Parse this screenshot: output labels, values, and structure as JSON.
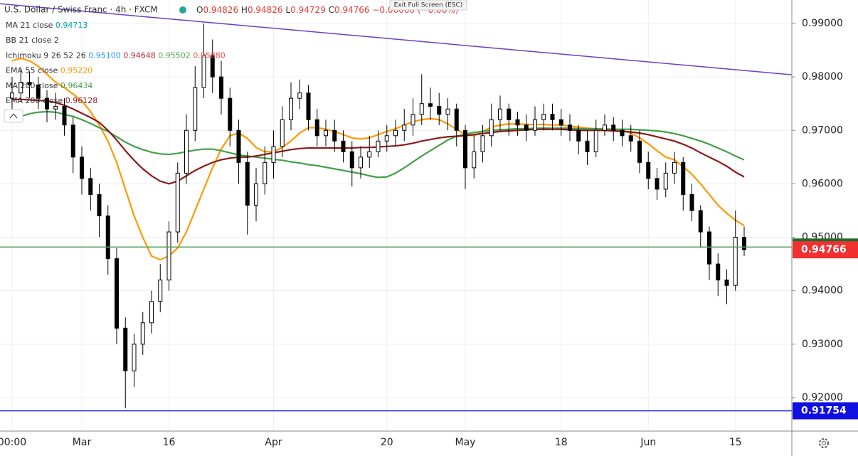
{
  "chart_data": {
    "type": "candlestick",
    "symbol": "U.S. Dollar / Swiss Franc · 4h · FXCM",
    "ohlc_header": [
      {
        "label": "O",
        "value": "0.94826"
      },
      {
        "label": "H",
        "value": "0.94826"
      },
      {
        "label": "L",
        "value": "0.94729"
      },
      {
        "label": "C",
        "value": "0.94766"
      }
    ],
    "change": "−0.00060 (−0.06%)",
    "exit_button": "Exit Full Screen (ESC)",
    "indicators": [
      {
        "name": "MA 21 close",
        "readings": [
          "0.94713"
        ],
        "colors": [
          "#00a3b4"
        ]
      },
      {
        "name": "BB 21 close 2",
        "readings": [],
        "colors": []
      },
      {
        "name": "Ichimoku 9 26 52 26",
        "readings": [
          "0.95100",
          "0.94648",
          "0.95502",
          "0.95880"
        ],
        "colors": [
          "#2196f3",
          "#b22833",
          "#4caf50",
          "#ef5350"
        ]
      }
    ],
    "categories": [
      "00:00",
      null,
      null,
      null,
      null,
      null,
      null,
      null,
      "Mar",
      null,
      null,
      null,
      null,
      null,
      null,
      null,
      null,
      null,
      "16",
      null,
      null,
      null,
      null,
      null,
      null,
      null,
      null,
      null,
      null,
      null,
      "Apr",
      null,
      null,
      null,
      null,
      null,
      null,
      null,
      null,
      null,
      null,
      null,
      null,
      "20",
      null,
      null,
      null,
      null,
      null,
      null,
      null,
      null,
      "May",
      null,
      null,
      null,
      null,
      null,
      null,
      null,
      null,
      null,
      null,
      "18",
      null,
      null,
      null,
      null,
      null,
      null,
      null,
      null,
      null,
      "Jun",
      null,
      null,
      null,
      null,
      null,
      null,
      null,
      null,
      null,
      "15",
      null
    ],
    "open": [
      0.976,
      0.977,
      0.979,
      0.9785,
      0.976,
      0.974,
      0.9745,
      0.971,
      0.965,
      0.961,
      0.958,
      0.954,
      0.946,
      0.933,
      0.925,
      0.93,
      0.934,
      0.938,
      0.942,
      0.951,
      0.962,
      0.97,
      0.978,
      0.984,
      0.98,
      0.976,
      0.97,
      0.964,
      0.956,
      0.96,
      0.964,
      0.967,
      0.972,
      0.976,
      0.977,
      0.972,
      0.969,
      0.97,
      0.968,
      0.966,
      0.963,
      0.965,
      0.966,
      0.968,
      0.969,
      0.97,
      0.971,
      0.973,
      0.975,
      0.9745,
      0.973,
      0.974,
      0.97,
      0.963,
      0.966,
      0.969,
      0.972,
      0.974,
      0.972,
      0.971,
      0.97,
      0.972,
      0.973,
      0.972,
      0.971,
      0.97,
      0.968,
      0.966,
      0.97,
      0.971,
      0.97,
      0.969,
      0.968,
      0.964,
      0.961,
      0.959,
      0.962,
      0.964,
      0.958,
      0.955,
      0.951,
      0.945,
      0.942,
      0.941,
      0.95
    ],
    "high": [
      0.98,
      0.9815,
      0.981,
      0.98,
      0.9775,
      0.977,
      0.976,
      0.9725,
      0.967,
      0.963,
      0.96,
      0.956,
      0.948,
      0.935,
      0.932,
      0.936,
      0.94,
      0.945,
      0.953,
      0.964,
      0.973,
      0.982,
      0.99,
      0.987,
      0.983,
      0.978,
      0.972,
      0.966,
      0.963,
      0.967,
      0.97,
      0.9745,
      0.979,
      0.9795,
      0.9785,
      0.974,
      0.972,
      0.972,
      0.97,
      0.968,
      0.967,
      0.969,
      0.97,
      0.971,
      0.972,
      0.974,
      0.976,
      0.9805,
      0.978,
      0.977,
      0.976,
      0.975,
      0.971,
      0.969,
      0.971,
      0.975,
      0.9765,
      0.975,
      0.9735,
      0.973,
      0.9745,
      0.975,
      0.975,
      0.974,
      0.973,
      0.971,
      0.97,
      0.972,
      0.973,
      0.9725,
      0.972,
      0.971,
      0.97,
      0.966,
      0.963,
      0.964,
      0.966,
      0.965,
      0.96,
      0.956,
      0.952,
      0.947,
      0.944,
      0.955,
      0.952
    ],
    "low": [
      0.974,
      0.9755,
      0.976,
      0.974,
      0.9715,
      0.972,
      0.969,
      0.962,
      0.958,
      0.955,
      0.95,
      0.943,
      0.93,
      0.918,
      0.922,
      0.928,
      0.932,
      0.936,
      0.94,
      0.949,
      0.96,
      0.968,
      0.976,
      0.977,
      0.973,
      0.967,
      0.96,
      0.9505,
      0.953,
      0.958,
      0.961,
      0.965,
      0.97,
      0.974,
      0.97,
      0.967,
      0.967,
      0.966,
      0.964,
      0.9595,
      0.961,
      0.963,
      0.965,
      0.966,
      0.967,
      0.968,
      0.969,
      0.971,
      0.972,
      0.971,
      0.97,
      0.967,
      0.959,
      0.961,
      0.964,
      0.967,
      0.97,
      0.969,
      0.969,
      0.968,
      0.969,
      0.97,
      0.97,
      0.969,
      0.968,
      0.9655,
      0.9635,
      0.965,
      0.969,
      0.968,
      0.967,
      0.966,
      0.962,
      0.959,
      0.957,
      0.9575,
      0.96,
      0.955,
      0.953,
      0.948,
      0.942,
      0.939,
      0.9375,
      0.94,
      0.9465
    ],
    "close": [
      0.977,
      0.979,
      0.9785,
      0.976,
      0.974,
      0.9745,
      0.971,
      0.965,
      0.961,
      0.958,
      0.954,
      0.946,
      0.933,
      0.925,
      0.93,
      0.934,
      0.938,
      0.942,
      0.951,
      0.962,
      0.97,
      0.978,
      0.984,
      0.98,
      0.976,
      0.97,
      0.964,
      0.956,
      0.96,
      0.964,
      0.967,
      0.972,
      0.976,
      0.977,
      0.972,
      0.969,
      0.97,
      0.968,
      0.966,
      0.963,
      0.965,
      0.966,
      0.968,
      0.969,
      0.97,
      0.971,
      0.973,
      0.975,
      0.9745,
      0.973,
      0.974,
      0.97,
      0.963,
      0.966,
      0.969,
      0.972,
      0.974,
      0.972,
      0.971,
      0.97,
      0.972,
      0.973,
      0.972,
      0.971,
      0.97,
      0.968,
      0.966,
      0.97,
      0.971,
      0.97,
      0.969,
      0.968,
      0.964,
      0.961,
      0.959,
      0.962,
      0.964,
      0.958,
      0.955,
      0.951,
      0.945,
      0.942,
      0.941,
      0.95,
      0.9477
    ],
    "up_color": "#ffffff",
    "down_color": "#000000",
    "wick_color": "#000000",
    "series": [
      {
        "name": "EMA 55 close",
        "reading": "0.95220",
        "color": "#ff9800",
        "values": [
          0.983,
          0.9835,
          0.983,
          0.982,
          0.9805,
          0.979,
          0.978,
          0.9768,
          0.9755,
          0.9735,
          0.971,
          0.968,
          0.964,
          0.959,
          0.954,
          0.95,
          0.9465,
          0.9458,
          0.9465,
          0.948,
          0.951,
          0.955,
          0.959,
          0.963,
          0.9665,
          0.969,
          0.9695,
          0.9685,
          0.9668,
          0.966,
          0.966,
          0.9668,
          0.968,
          0.9695,
          0.9705,
          0.9705,
          0.9702,
          0.9698,
          0.9692,
          0.9686,
          0.9684,
          0.9686,
          0.9692,
          0.9698,
          0.9703,
          0.971,
          0.9716,
          0.972,
          0.9722,
          0.972,
          0.9712,
          0.9702,
          0.9692,
          0.969,
          0.9698,
          0.9706,
          0.971,
          0.9712,
          0.9712,
          0.9711,
          0.9711,
          0.9711,
          0.971,
          0.971,
          0.9708,
          0.9706,
          0.9704,
          0.9703,
          0.9703,
          0.9702,
          0.97,
          0.9695,
          0.9686,
          0.9675,
          0.9662,
          0.965,
          0.9645,
          0.9632,
          0.9618,
          0.96,
          0.958,
          0.956,
          0.9545,
          0.9532,
          0.9522
        ]
      },
      {
        "name": "MA 200 close",
        "reading": "0.96434",
        "color": "#43a047",
        "values": [
          0.972,
          0.9726,
          0.9731,
          0.9734,
          0.9735,
          0.9734,
          0.973,
          0.9726,
          0.972,
          0.9713,
          0.9705,
          0.9698,
          0.9688,
          0.9678,
          0.967,
          0.9664,
          0.9659,
          0.9656,
          0.9655,
          0.9657,
          0.966,
          0.9663,
          0.9665,
          0.9665,
          0.9662,
          0.9658,
          0.9654,
          0.9652,
          0.965,
          0.9648,
          0.9646,
          0.9644,
          0.9641,
          0.9639,
          0.9636,
          0.9634,
          0.9631,
          0.9628,
          0.9625,
          0.9622,
          0.9619,
          0.9615,
          0.9612,
          0.9613,
          0.962,
          0.963,
          0.9641,
          0.9652,
          0.9662,
          0.9672,
          0.9682,
          0.9689,
          0.9693,
          0.9696,
          0.9698,
          0.97,
          0.9701,
          0.9702,
          0.9703,
          0.9703,
          0.9704,
          0.9704,
          0.9704,
          0.9704,
          0.9704,
          0.9703,
          0.9703,
          0.9703,
          0.9702,
          0.9702,
          0.9702,
          0.9702,
          0.9701,
          0.97,
          0.9699,
          0.9697,
          0.9694,
          0.969,
          0.9685,
          0.968,
          0.9674,
          0.9667,
          0.966,
          0.9652,
          0.9645
        ]
      },
      {
        "name": "EMA 200 close",
        "reading": "0.96128",
        "color": "#8b1a1a",
        "values": [
          0.9758,
          0.9758,
          0.9757,
          0.9756,
          0.9755,
          0.9752,
          0.9747,
          0.974,
          0.9732,
          0.9724,
          0.9715,
          0.97,
          0.9682,
          0.9662,
          0.9644,
          0.9628,
          0.9615,
          0.9605,
          0.96,
          0.9605,
          0.9615,
          0.9625,
          0.9633,
          0.964,
          0.9645,
          0.9648,
          0.965,
          0.965,
          0.9652,
          0.9655,
          0.9658,
          0.9661,
          0.9664,
          0.9666,
          0.9667,
          0.9667,
          0.9667,
          0.9667,
          0.9667,
          0.9667,
          0.9668,
          0.9668,
          0.9669,
          0.967,
          0.9671,
          0.9673,
          0.9676,
          0.968,
          0.9683,
          0.9686,
          0.9688,
          0.9689,
          0.969,
          0.9692,
          0.9694,
          0.9696,
          0.9698,
          0.9699,
          0.97,
          0.9701,
          0.9702,
          0.9702,
          0.9702,
          0.9702,
          0.9701,
          0.97,
          0.97,
          0.97,
          0.97,
          0.9699,
          0.9698,
          0.9697,
          0.9695,
          0.9692,
          0.9688,
          0.9684,
          0.968,
          0.9674,
          0.9667,
          0.9658,
          0.965,
          0.9642,
          0.9633,
          0.9622,
          0.9613
        ]
      }
    ],
    "trendline": {
      "color": "#6a3fc8",
      "values": [
        0.9937,
        0.9804
      ]
    },
    "horizontal_lines": [
      {
        "value": 0.94818,
        "color": "#5aa05a"
      },
      {
        "value": 0.91754,
        "color": "#1010e0"
      }
    ],
    "price_labels": [
      {
        "value": 0.94818,
        "color": "#1e6b2e"
      },
      {
        "value": 0.94766,
        "color": "#f23030"
      },
      {
        "value": 0.91754,
        "color": "#1010e0"
      }
    ],
    "ylim": [
      0.91374,
      0.99439
    ],
    "yticks": [
      {
        "value": 0.92,
        "label": "0.92000"
      },
      {
        "value": 0.93,
        "label": "0.93000"
      },
      {
        "value": 0.94,
        "label": "0.94000"
      },
      {
        "value": 0.95,
        "label": "0.95000"
      },
      {
        "value": 0.96,
        "label": "0.96000"
      },
      {
        "value": 0.97,
        "label": "0.97000"
      },
      {
        "value": 0.98,
        "label": "0.98000"
      },
      {
        "value": 0.99,
        "label": "0.99000"
      }
    ],
    "grid": true
  }
}
